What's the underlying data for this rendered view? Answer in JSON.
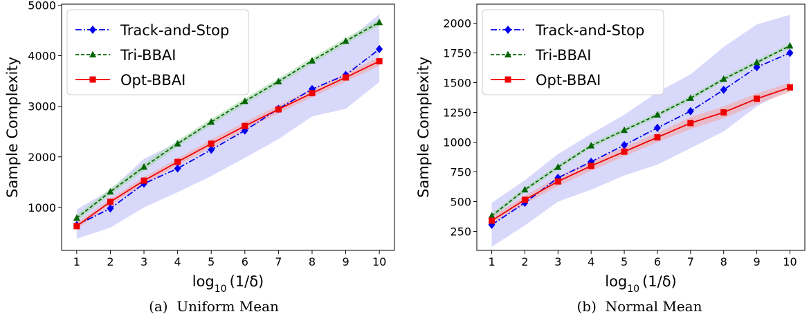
{
  "colors": {
    "track": "#0000ee",
    "tri": "#006400",
    "opt": "#ee0000",
    "band_track": "#b8b8f8",
    "band_tri": "#a6d8a6",
    "band_opt": "#f5a8a8"
  },
  "chart_data": [
    {
      "type": "line",
      "caption": "(a)  Uniform Mean",
      "xlabel": "log",
      "xlabel_sub": "10",
      "xlabel_tail": "(1/δ)",
      "ylabel": "Sample Complexity",
      "x": [
        1,
        2,
        3,
        4,
        5,
        6,
        7,
        8,
        9,
        10
      ],
      "xlim": [
        0.55,
        10.45
      ],
      "ylim": [
        150,
        5020
      ],
      "yticks": [
        1000,
        2000,
        3000,
        4000,
        5000
      ],
      "legend_position": "top-left",
      "grid": false,
      "series": [
        {
          "name": "Track-and-Stop",
          "key": "track",
          "marker": "diamond",
          "dash": "dashdot",
          "values": [
            650,
            980,
            1470,
            1770,
            2140,
            2520,
            2950,
            3340,
            3620,
            4130
          ],
          "band_low": [
            380,
            600,
            1000,
            1300,
            1620,
            1980,
            2350,
            2800,
            2950,
            3480
          ],
          "band_high": [
            960,
            1350,
            1960,
            2290,
            2680,
            3100,
            3520,
            3880,
            4280,
            4820
          ]
        },
        {
          "name": "Tri-BBAI",
          "key": "tri",
          "marker": "triangle",
          "dash": "dashed",
          "values": [
            790,
            1310,
            1800,
            2260,
            2690,
            3100,
            3490,
            3900,
            4290,
            4660
          ],
          "band_low": [
            730,
            1250,
            1730,
            2200,
            2630,
            3040,
            3430,
            3840,
            4230,
            4600
          ],
          "band_high": [
            850,
            1370,
            1870,
            2320,
            2750,
            3160,
            3550,
            3960,
            4350,
            4720
          ]
        },
        {
          "name": "Opt-BBAI",
          "key": "opt",
          "marker": "square",
          "dash": "solid",
          "values": [
            630,
            1110,
            1530,
            1900,
            2260,
            2610,
            2940,
            3260,
            3570,
            3890
          ],
          "band_low": [
            570,
            1050,
            1460,
            1830,
            2180,
            2530,
            2860,
            3180,
            3490,
            3800
          ],
          "band_high": [
            690,
            1170,
            1600,
            1970,
            2340,
            2690,
            3020,
            3340,
            3650,
            3980
          ]
        }
      ]
    },
    {
      "type": "line",
      "caption": "(b)  Normal Mean",
      "xlabel": "log",
      "xlabel_sub": "10",
      "xlabel_tail": "(1/δ)",
      "ylabel": "Sample Complexity",
      "x": [
        1,
        2,
        3,
        4,
        5,
        6,
        7,
        8,
        9,
        10
      ],
      "xlim": [
        0.55,
        10.45
      ],
      "ylim": [
        90,
        2160
      ],
      "yticks": [
        250,
        500,
        750,
        1000,
        1250,
        1500,
        1750,
        2000
      ],
      "legend_position": "top-left",
      "grid": false,
      "series": [
        {
          "name": "Track-and-Stop",
          "key": "track",
          "marker": "diamond",
          "dash": "dashdot",
          "values": [
            305,
            490,
            700,
            835,
            975,
            1120,
            1260,
            1440,
            1630,
            1750
          ],
          "band_low": [
            120,
            300,
            500,
            600,
            720,
            810,
            950,
            1090,
            1300,
            1450
          ],
          "band_high": [
            490,
            680,
            900,
            1070,
            1230,
            1420,
            1570,
            1800,
            1990,
            2070
          ]
        },
        {
          "name": "Tri-BBAI",
          "key": "tri",
          "marker": "triangle",
          "dash": "dashed",
          "values": [
            380,
            600,
            790,
            970,
            1100,
            1230,
            1370,
            1530,
            1670,
            1810
          ],
          "band_low": [
            360,
            580,
            770,
            950,
            1080,
            1210,
            1350,
            1510,
            1650,
            1790
          ],
          "band_high": [
            400,
            620,
            810,
            990,
            1120,
            1250,
            1390,
            1550,
            1690,
            1830
          ]
        },
        {
          "name": "Opt-BBAI",
          "key": "opt",
          "marker": "square",
          "dash": "solid",
          "values": [
            340,
            515,
            670,
            800,
            920,
            1040,
            1160,
            1250,
            1365,
            1460
          ],
          "band_low": [
            310,
            480,
            630,
            760,
            880,
            1000,
            1110,
            1200,
            1320,
            1420
          ],
          "band_high": [
            370,
            550,
            710,
            840,
            960,
            1080,
            1210,
            1300,
            1410,
            1500
          ]
        }
      ]
    }
  ]
}
